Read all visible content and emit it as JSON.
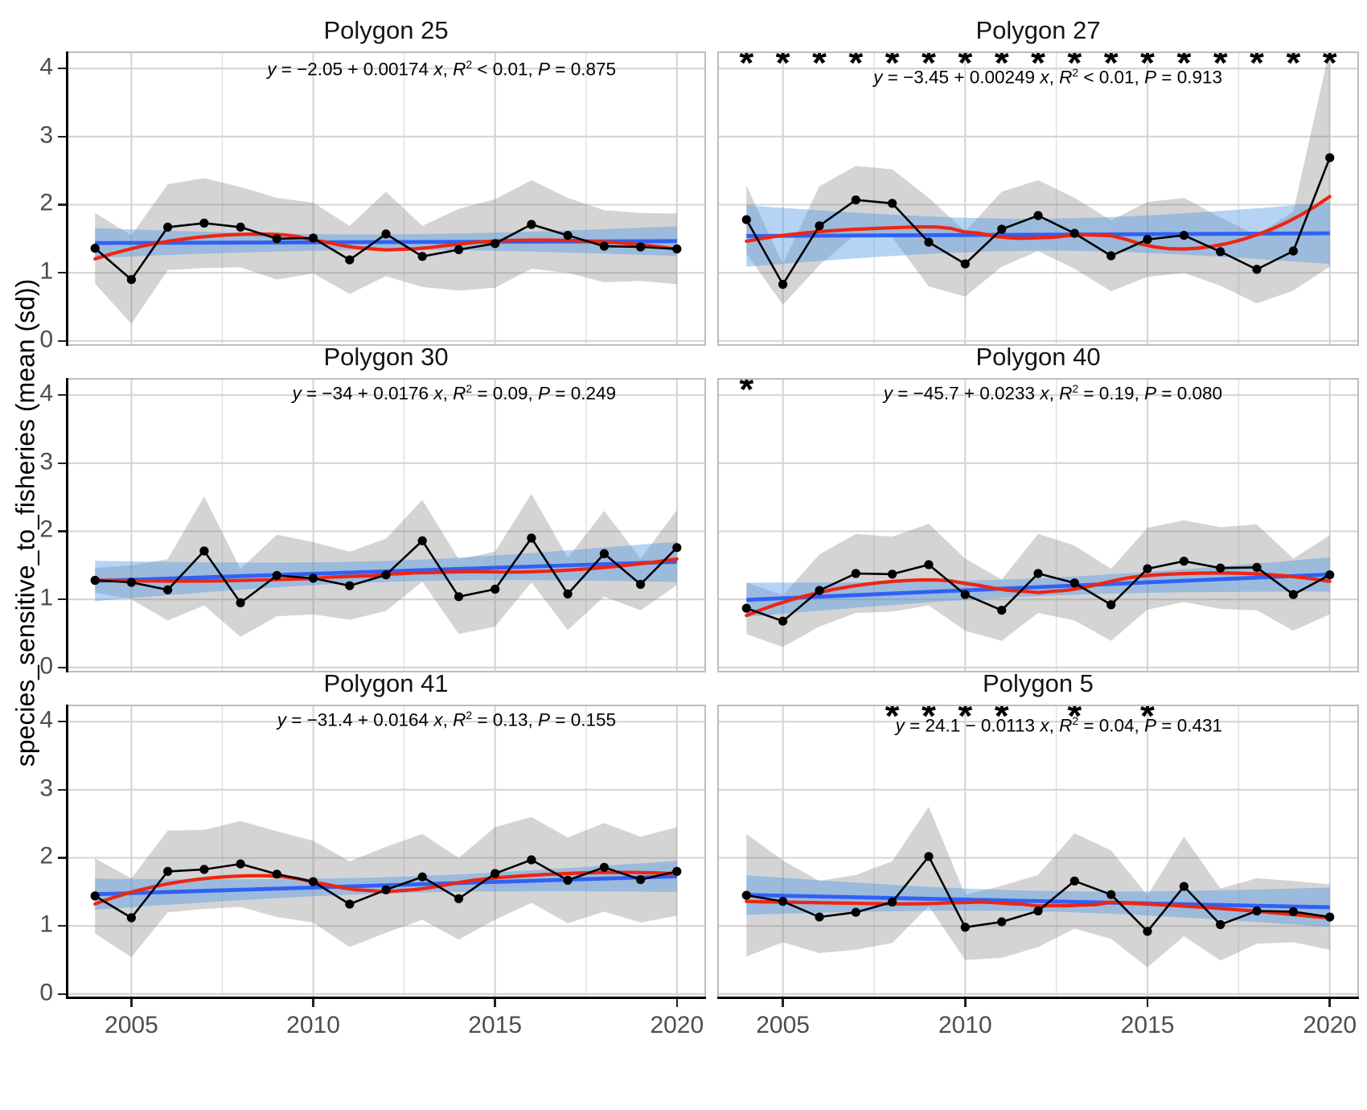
{
  "y_axis": {
    "label": "species_sensitive_to_fisheries (mean (sd))",
    "tick_labels": [
      "0",
      "1",
      "2",
      "3",
      "4"
    ],
    "tick_values": [
      0,
      1,
      2,
      3,
      4
    ]
  },
  "x_axis": {
    "tick_labels": [
      "2005",
      "2010",
      "2015",
      "2020"
    ],
    "tick_values": [
      2005,
      2010,
      2015,
      2020
    ],
    "minor_tick_values": [
      2007.5,
      2012.5,
      2017.5
    ]
  },
  "significance_marker": "*",
  "colors": {
    "mean_points_line": "#000000",
    "sd_ribbon": "#808080",
    "lm_line": "#3060f5",
    "lm_ci_band": "#4f97e8",
    "loess_line": "#ee2512",
    "grid_major": "#d4d4d4",
    "grid_minor": "#e3e3e3",
    "panel_border": "#bdbdbd",
    "axis_line": "#000000",
    "axis_text": "#4d4d4d",
    "title_text": "#141414"
  },
  "chart_data": {
    "type": "line",
    "ylabel": "species_sensitive_to_fisheries (mean (sd))",
    "xlabel": "",
    "ylim": [
      0,
      4
    ],
    "xlim": [
      2004,
      2020
    ],
    "grid": "major-y, major-and-minor-x",
    "x": [
      2004,
      2005,
      2006,
      2007,
      2008,
      2009,
      2010,
      2011,
      2012,
      2013,
      2014,
      2015,
      2016,
      2017,
      2018,
      2019,
      2020
    ],
    "panels": [
      {
        "title": "Polygon 25",
        "means": [
          1.36,
          0.9,
          1.67,
          1.73,
          1.67,
          1.5,
          1.51,
          1.19,
          1.57,
          1.24,
          1.34,
          1.43,
          1.71,
          1.55,
          1.39,
          1.38,
          1.35
        ],
        "sds": [
          0.52,
          0.65,
          0.63,
          0.66,
          0.59,
          0.6,
          0.52,
          0.5,
          0.62,
          0.45,
          0.6,
          0.65,
          0.65,
          0.55,
          0.53,
          0.5,
          0.52
        ],
        "regression": {
          "intercept": -2.05,
          "slope": 0.00174
        },
        "eq": {
          "intercept_text": "−2.05",
          "op": "+",
          "slope_text": "0.00174",
          "r2_op": "<",
          "r2": "0.01",
          "p": "0.875"
        },
        "equation_text": "y = −2.05 + 0.00174 x, R² < 0.01, P = 0.875",
        "significant_years": []
      },
      {
        "title": "Polygon 27",
        "means": [
          1.78,
          0.83,
          1.69,
          2.07,
          2.02,
          1.45,
          1.13,
          1.64,
          1.84,
          1.58,
          1.25,
          1.49,
          1.55,
          1.31,
          1.05,
          1.32,
          2.69
        ],
        "sds": [
          0.5,
          0.3,
          0.58,
          0.5,
          0.5,
          0.65,
          0.48,
          0.55,
          0.52,
          0.52,
          0.52,
          0.55,
          0.55,
          0.5,
          0.5,
          0.58,
          1.6
        ],
        "regression": {
          "intercept": -3.45,
          "slope": 0.00249
        },
        "eq": {
          "intercept_text": "−3.45",
          "op": "+",
          "slope_text": "0.00249",
          "r2_op": "<",
          "r2": "0.01",
          "p": "0.913"
        },
        "equation_text": "y = −3.45 + 0.00249 x, R² < 0.01, P = 0.913",
        "significant_years": [
          2004,
          2005,
          2006,
          2007,
          2008,
          2009,
          2010,
          2011,
          2012,
          2013,
          2014,
          2015,
          2016,
          2017,
          2018,
          2019,
          2020
        ]
      },
      {
        "title": "Polygon 30",
        "means": [
          1.28,
          1.25,
          1.14,
          1.71,
          0.95,
          1.35,
          1.31,
          1.2,
          1.36,
          1.86,
          1.04,
          1.15,
          1.9,
          1.08,
          1.67,
          1.22,
          1.76
        ],
        "sds": [
          0.18,
          0.25,
          0.45,
          0.8,
          0.5,
          0.6,
          0.53,
          0.5,
          0.53,
          0.6,
          0.55,
          0.55,
          0.65,
          0.53,
          0.63,
          0.38,
          0.55
        ],
        "regression": {
          "intercept": -34,
          "slope": 0.0176
        },
        "eq": {
          "intercept_text": "−34",
          "op": "+",
          "slope_text": "0.0176",
          "r2_op": "=",
          "r2": "0.09",
          "p": "0.249"
        },
        "equation_text": "y = −34 + 0.0176 x, R² = 0.09, P = 0.249",
        "significant_years": []
      },
      {
        "title": "Polygon 40",
        "means": [
          0.87,
          0.68,
          1.13,
          1.38,
          1.37,
          1.51,
          1.07,
          0.84,
          1.38,
          1.24,
          0.92,
          1.45,
          1.56,
          1.46,
          1.47,
          1.07,
          1.36
        ],
        "sds": [
          0.38,
          0.38,
          0.53,
          0.58,
          0.55,
          0.6,
          0.53,
          0.45,
          0.58,
          0.55,
          0.53,
          0.6,
          0.6,
          0.6,
          0.63,
          0.53,
          0.58
        ],
        "regression": {
          "intercept": -45.7,
          "slope": 0.0233
        },
        "eq": {
          "intercept_text": "−45.7",
          "op": "+",
          "slope_text": "0.0233",
          "r2_op": "=",
          "r2": "0.19",
          "p": "0.080"
        },
        "equation_text": "y = −45.7 + 0.0233 x, R² = 0.19, P = 0.080",
        "significant_years": [
          2004
        ]
      },
      {
        "title": "Polygon 41",
        "means": [
          1.44,
          1.12,
          1.8,
          1.83,
          1.91,
          1.76,
          1.65,
          1.32,
          1.53,
          1.72,
          1.4,
          1.77,
          1.97,
          1.67,
          1.86,
          1.68,
          1.8
        ],
        "sds": [
          0.55,
          0.58,
          0.6,
          0.58,
          0.63,
          0.63,
          0.6,
          0.63,
          0.63,
          0.63,
          0.6,
          0.68,
          0.63,
          0.63,
          0.65,
          0.63,
          0.65
        ],
        "regression": {
          "intercept": -31.4,
          "slope": 0.0164
        },
        "eq": {
          "intercept_text": "−31.4",
          "op": "+",
          "slope_text": "0.0164",
          "r2_op": "=",
          "r2": "0.13",
          "p": "0.155"
        },
        "equation_text": "y = −31.4 + 0.0164 x, R² = 0.13, P = 0.155",
        "significant_years": []
      },
      {
        "title": "Polygon 5",
        "means": [
          1.45,
          1.36,
          1.13,
          1.2,
          1.35,
          2.02,
          0.98,
          1.06,
          1.22,
          1.66,
          1.46,
          0.92,
          1.58,
          1.02,
          1.22,
          1.21,
          1.13
        ],
        "sds": [
          0.9,
          0.6,
          0.53,
          0.55,
          0.6,
          0.73,
          0.48,
          0.53,
          0.53,
          0.7,
          0.65,
          0.53,
          0.73,
          0.53,
          0.48,
          0.45,
          0.48
        ],
        "regression": {
          "intercept": 24.1,
          "slope": -0.0113
        },
        "eq": {
          "intercept_text": "24.1",
          "op": "−",
          "slope_text": "0.0113",
          "r2_op": "=",
          "r2": "0.04",
          "p": "0.431"
        },
        "equation_text": "y = 24.1 − 0.0113 x, R² = 0.04, P = 0.431",
        "significant_years": [
          2008,
          2009,
          2010,
          2011,
          2013,
          2015
        ]
      }
    ]
  }
}
